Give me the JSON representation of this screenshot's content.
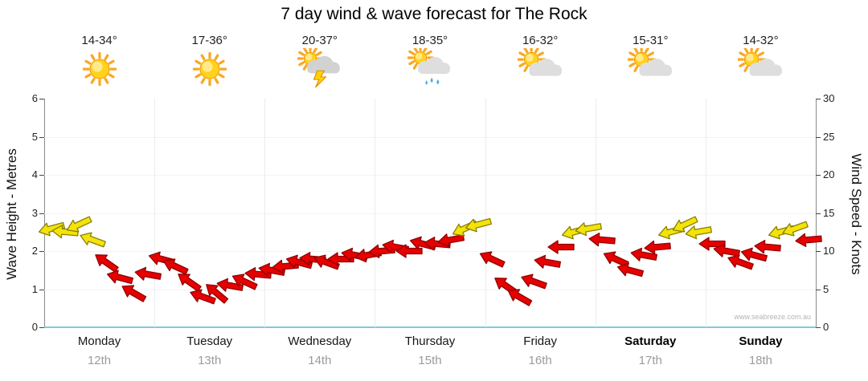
{
  "title": "7 day wind & wave forecast for The Rock",
  "watermark": "www.seabreeze.com.au",
  "days": [
    {
      "name": "Monday",
      "date": "12th",
      "temp": "14-34°",
      "icon": "sun",
      "bold": false
    },
    {
      "name": "Tuesday",
      "date": "13th",
      "temp": "17-36°",
      "icon": "sun",
      "bold": false
    },
    {
      "name": "Wednesday",
      "date": "14th",
      "temp": "20-37°",
      "icon": "storm",
      "bold": false
    },
    {
      "name": "Thursday",
      "date": "15th",
      "temp": "18-35°",
      "icon": "sun_rain",
      "bold": false
    },
    {
      "name": "Friday",
      "date": "16th",
      "temp": "16-32°",
      "icon": "sun_cloud",
      "bold": false
    },
    {
      "name": "Saturday",
      "date": "17th",
      "temp": "15-31°",
      "icon": "sun_cloud",
      "bold": true
    },
    {
      "name": "Sunday",
      "date": "18th",
      "temp": "14-32°",
      "icon": "sun_cloud",
      "bold": true
    }
  ],
  "chart_data": {
    "type": "scatter",
    "title": "7 day wind & wave forecast for The Rock",
    "left_axis": {
      "label": "Wave Height - Metres",
      "min": 0,
      "max": 6,
      "ticks": [
        0,
        1,
        2,
        3,
        4,
        5,
        6
      ]
    },
    "right_axis": {
      "label": "Wind Speed - Knots",
      "min": 0,
      "max": 30,
      "ticks": [
        0,
        5,
        10,
        15,
        20,
        25,
        30
      ]
    },
    "legend": "wind arrows coloured by strength",
    "colors": {
      "red": "#e60000",
      "red_stroke": "#8f0000",
      "yellow": "#f4e30a",
      "yellow_stroke": "#8a8000"
    },
    "categories": [
      "Monday 12th",
      "Tuesday 13th",
      "Wednesday 14th",
      "Thursday 15th",
      "Friday 16th",
      "Saturday 17th",
      "Sunday 18th"
    ],
    "wind_arrows": [
      {
        "day": "Monday",
        "knots": [
          13,
          12.5,
          13.5,
          11.5,
          8.5,
          6.5,
          4.5,
          7
        ],
        "color": [
          "y",
          "y",
          "y",
          "y",
          "r",
          "r",
          "r",
          "r"
        ],
        "rot": [
          -15,
          5,
          -25,
          20,
          35,
          15,
          30,
          10
        ]
      },
      {
        "day": "Tuesday",
        "knots": [
          9,
          8,
          6,
          4,
          4.5,
          5.5,
          6,
          7
        ],
        "color": [
          "r",
          "r",
          "r",
          "r",
          "r",
          "r",
          "r",
          "r"
        ],
        "rot": [
          15,
          25,
          35,
          20,
          40,
          10,
          25,
          5
        ]
      },
      {
        "day": "Wednesday",
        "knots": [
          7.5,
          8,
          8.5,
          9,
          8.5,
          9,
          9.5,
          9.5
        ],
        "color": [
          "r",
          "r",
          "r",
          "r",
          "r",
          "r",
          "r",
          "r"
        ],
        "rot": [
          10,
          -5,
          15,
          5,
          20,
          0,
          10,
          -10
        ]
      },
      {
        "day": "Thursday",
        "knots": [
          10,
          10.5,
          10,
          11,
          11,
          11.5,
          13,
          13.5
        ],
        "color": [
          "r",
          "r",
          "r",
          "r",
          "r",
          "r",
          "y",
          "y"
        ],
        "rot": [
          -5,
          10,
          0,
          15,
          5,
          -10,
          -25,
          -15
        ]
      },
      {
        "day": "Friday",
        "knots": [
          9,
          5.5,
          4,
          6,
          8.5,
          10.5,
          12.5,
          13
        ],
        "color": [
          "r",
          "r",
          "r",
          "r",
          "r",
          "r",
          "y",
          "y"
        ],
        "rot": [
          25,
          35,
          30,
          20,
          10,
          0,
          -15,
          -10
        ]
      },
      {
        "day": "Saturday",
        "knots": [
          11.5,
          9,
          7.5,
          9.5,
          10.5,
          12.5,
          13.5,
          12.5
        ],
        "color": [
          "r",
          "r",
          "r",
          "r",
          "r",
          "y",
          "y",
          "y"
        ],
        "rot": [
          5,
          25,
          15,
          10,
          -5,
          -15,
          -25,
          -10
        ]
      },
      {
        "day": "Sunday",
        "knots": [
          11,
          10,
          8.5,
          9.5,
          10.5,
          12.5,
          13,
          11.5
        ],
        "color": [
          "r",
          "r",
          "r",
          "r",
          "r",
          "y",
          "y",
          "r"
        ],
        "rot": [
          0,
          10,
          20,
          15,
          5,
          -15,
          -20,
          -5
        ]
      }
    ]
  }
}
